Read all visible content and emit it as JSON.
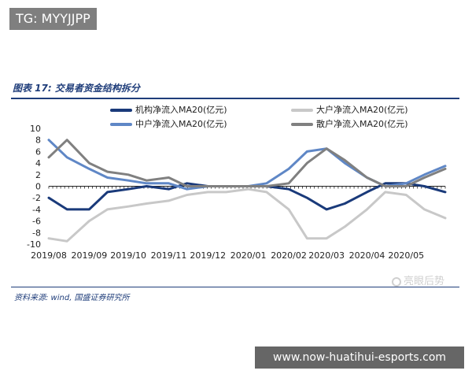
{
  "tag": "TG: MYYJJPP",
  "figure_title": "图表 17:  交易者资金结构拆分",
  "source": "资料来源: wind, 国盛证券研究所",
  "watermark": "亮眼后势",
  "url_banner": "www.now-huatihui-esports.com",
  "chart_data": {
    "type": "line",
    "x": [
      "2019/08/01",
      "2019/08/15",
      "2019/09/01",
      "2019/09/15",
      "2019/10/01",
      "2019/10/15",
      "2019/11/01",
      "2019/11/15",
      "2019/12/01",
      "2019/12/15",
      "2020/01/01",
      "2020/01/15",
      "2020/02/01",
      "2020/02/15",
      "2020/03/01",
      "2020/03/15",
      "2020/04/01",
      "2020/04/15",
      "2020/05/01",
      "2020/05/15",
      "2020/05/31"
    ],
    "series": [
      {
        "name": "机构净流入MA20(亿元)",
        "color": "#1a3a7a",
        "width": 3,
        "values": [
          -2,
          -4,
          -4,
          -1,
          -0.5,
          0,
          -0.5,
          0.5,
          0,
          0,
          0,
          0,
          -0.5,
          -2,
          -4,
          -3,
          -1,
          0.5,
          0.5,
          0,
          -1
        ]
      },
      {
        "name": "大户净流入MA20(亿元)",
        "color": "#c8c8c8",
        "width": 3,
        "values": [
          -9,
          -9.5,
          -6,
          -4,
          -3.5,
          -3,
          -2.5,
          -1.5,
          -1,
          -1,
          -0.5,
          -1,
          -4,
          -9,
          -9,
          -7,
          -4,
          -1,
          -1.5,
          -4,
          -5.5
        ]
      },
      {
        "name": "中户净流入MA20(亿元)",
        "color": "#5f87c6",
        "width": 3,
        "values": [
          8,
          5,
          3,
          1.5,
          1,
          0.5,
          0.5,
          -0.5,
          0,
          0,
          0,
          0.5,
          3,
          6,
          6.5,
          4,
          1.5,
          0,
          0.5,
          2,
          3.5
        ]
      },
      {
        "name": "散户净流入MA20(亿元)",
        "color": "#808080",
        "width": 3,
        "values": [
          5,
          8,
          4,
          2.5,
          2,
          1,
          1.5,
          0,
          0,
          0,
          0,
          0,
          0.5,
          4,
          6.5,
          4.5,
          1.5,
          0,
          0,
          1.5,
          3
        ]
      }
    ],
    "x_ticks": [
      "2019/08",
      "2019/09",
      "2019/10",
      "2019/11",
      "2019/12",
      "2020/01",
      "2020/02",
      "2020/03",
      "2020/04",
      "2020/05"
    ],
    "y_ticks": [
      "10",
      "8",
      "6",
      "4",
      "2",
      "0",
      "-2",
      "-4",
      "-6",
      "-8",
      "-10"
    ],
    "ylim": [
      -10,
      10
    ],
    "grid": false,
    "legend_position": "top"
  }
}
